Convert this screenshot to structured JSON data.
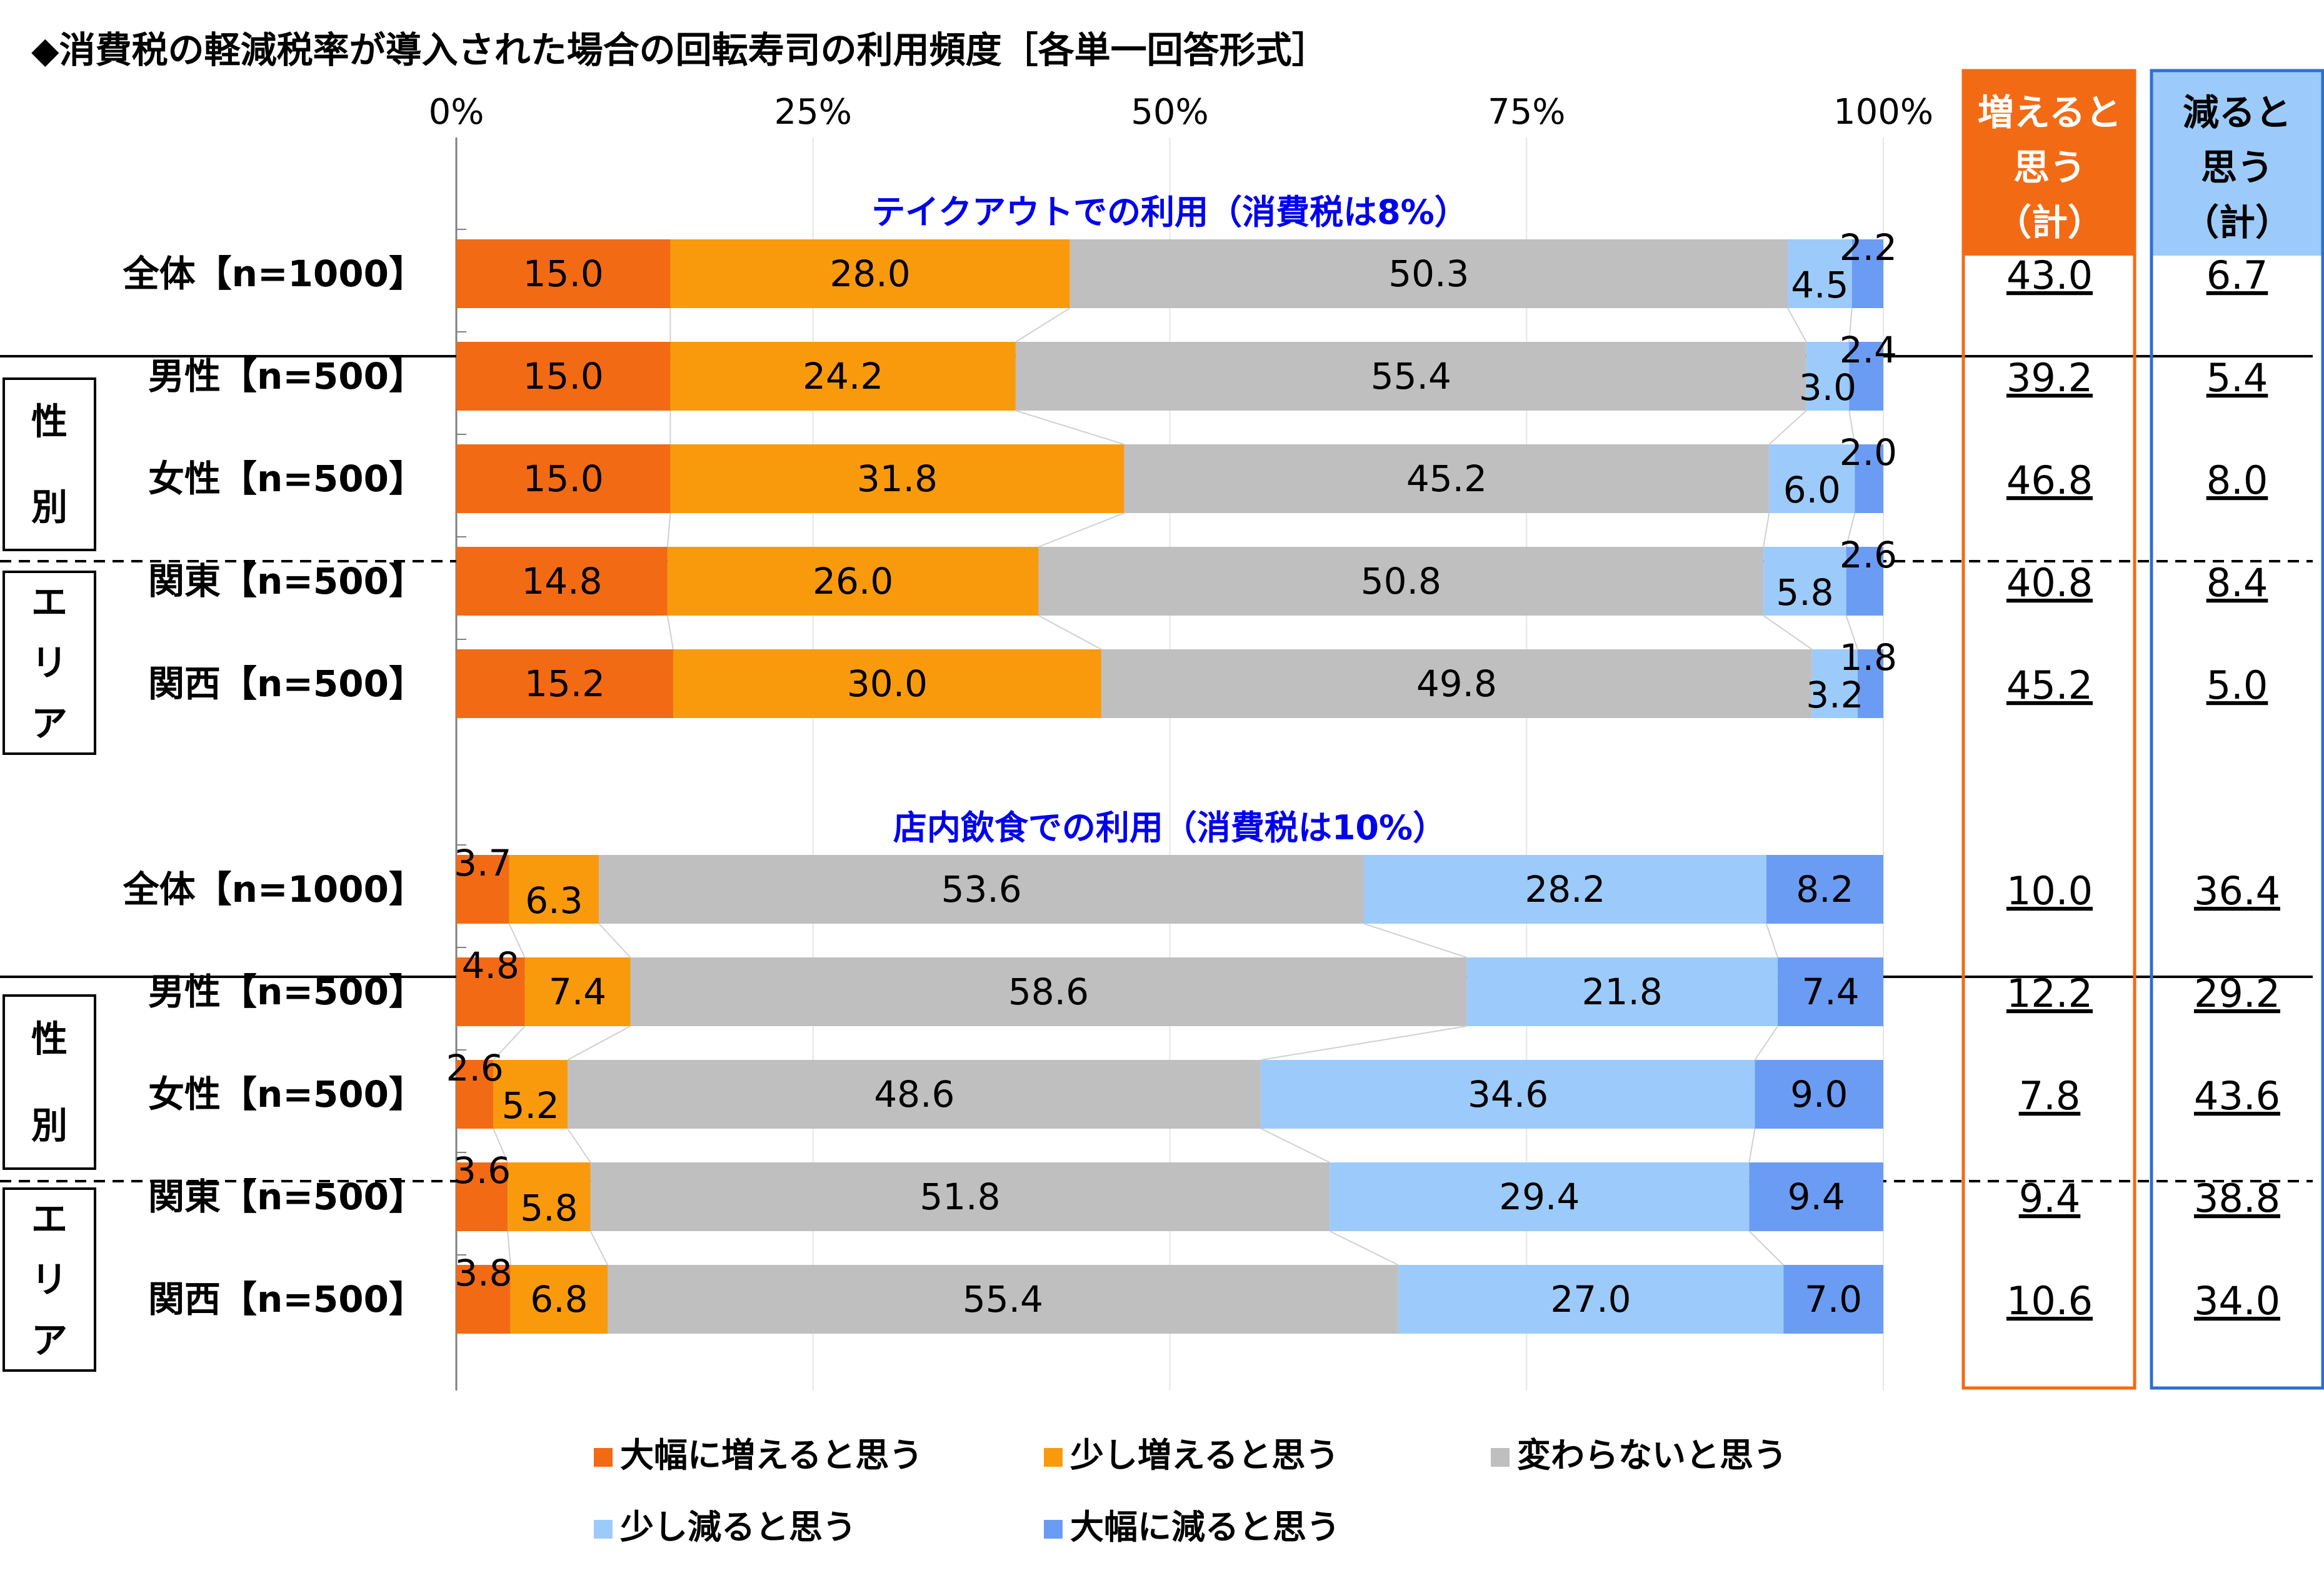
{
  "title": "◆消費税の軽減税率が導入された場合の回転寿司の利用頻度［各単一回答形式］",
  "colors": {
    "大幅に増えると思う": "#f36a14",
    "少し増えると思う": "#f99a0d",
    "変わらないと思う": "#bfbfbf",
    "少し減ると思う": "#9ccbfb",
    "大幅に減ると思う": "#6b9cf3",
    "increase_box": "#f36a14",
    "decrease_box": "#2e6fd1",
    "decrease_header": "#9ccbfb"
  },
  "headers": {
    "increase": [
      "増えると",
      "思う",
      "（計）"
    ],
    "decrease": [
      "減ると",
      "思う",
      "（計）"
    ]
  },
  "chart_data": {
    "type": "bar",
    "orientation": "horizontal",
    "stacked": true,
    "percent_stacked": true,
    "x_ticks": [
      "0%",
      "25%",
      "50%",
      "75%",
      "100%"
    ],
    "xlim": [
      0,
      100
    ],
    "legend_position": "bottom",
    "legend": [
      "大幅に増えると思う",
      "少し増えると思う",
      "変わらないと思う",
      "少し減ると思う",
      "大幅に減ると思う"
    ],
    "sections": [
      {
        "title": "テイクアウトでの利用（消費税は8%）",
        "rows": [
          {
            "label": "全体【n=1000】",
            "group": "",
            "values": [
              15.0,
              28.0,
              50.3,
              4.5,
              2.2
            ],
            "labels": [
              "15.0",
              "28.0",
              "50.3",
              "4.5",
              "2.2"
            ],
            "increase_total": "43.0",
            "decrease_total": "6.7"
          },
          {
            "label": "男性【n=500】",
            "group": "性別",
            "values": [
              15.0,
              24.2,
              55.4,
              3.0,
              2.4
            ],
            "labels": [
              "15.0",
              "24.2",
              "55.4",
              "3.0",
              "2.4"
            ],
            "increase_total": "39.2",
            "decrease_total": "5.4"
          },
          {
            "label": "女性【n=500】",
            "group": "性別",
            "values": [
              15.0,
              31.8,
              45.2,
              6.0,
              2.0
            ],
            "labels": [
              "15.0",
              "31.8",
              "45.2",
              "6.0",
              "2.0"
            ],
            "increase_total": "46.8",
            "decrease_total": "8.0"
          },
          {
            "label": "関東【n=500】",
            "group": "エリア",
            "values": [
              14.8,
              26.0,
              50.8,
              5.8,
              2.6
            ],
            "labels": [
              "14.8",
              "26.0",
              "50.8",
              "5.8",
              "2.6"
            ],
            "increase_total": "40.8",
            "decrease_total": "8.4"
          },
          {
            "label": "関西【n=500】",
            "group": "エリア",
            "values": [
              15.2,
              30.0,
              49.8,
              3.2,
              1.8
            ],
            "labels": [
              "15.2",
              "30.0",
              "49.8",
              "3.2",
              "1.8"
            ],
            "increase_total": "45.2",
            "decrease_total": "5.0"
          }
        ]
      },
      {
        "title": "店内飲食での利用（消費税は10%）",
        "rows": [
          {
            "label": "全体【n=1000】",
            "group": "",
            "values": [
              3.7,
              6.3,
              53.6,
              28.2,
              8.2
            ],
            "labels": [
              "3.7",
              "6.3",
              "53.6",
              "28.2",
              "8.2"
            ],
            "increase_total": "10.0",
            "decrease_total": "36.4"
          },
          {
            "label": "男性【n=500】",
            "group": "性別",
            "values": [
              4.8,
              7.4,
              58.6,
              21.8,
              7.4
            ],
            "labels": [
              "4.8",
              "7.4",
              "58.6",
              "21.8",
              "7.4"
            ],
            "increase_total": "12.2",
            "decrease_total": "29.2"
          },
          {
            "label": "女性【n=500】",
            "group": "性別",
            "values": [
              2.6,
              5.2,
              48.6,
              34.6,
              9.0
            ],
            "labels": [
              "2.6",
              "5.2",
              "48.6",
              "34.6",
              "9.0"
            ],
            "increase_total": "7.8",
            "decrease_total": "43.6"
          },
          {
            "label": "関東【n=500】",
            "group": "エリア",
            "values": [
              3.6,
              5.8,
              51.8,
              29.4,
              9.4
            ],
            "labels": [
              "3.6",
              "5.8",
              "51.8",
              "29.4",
              "9.4"
            ],
            "increase_total": "9.4",
            "decrease_total": "38.8"
          },
          {
            "label": "関西【n=500】",
            "group": "エリア",
            "values": [
              3.8,
              6.8,
              55.4,
              27.0,
              7.0
            ],
            "labels": [
              "3.8",
              "6.8",
              "55.4",
              "27.0",
              "7.0"
            ],
            "increase_total": "10.6",
            "decrease_total": "34.0"
          }
        ]
      }
    ],
    "group_labels": {
      "性別": [
        "性",
        "別"
      ],
      "エリア": [
        "エ",
        "リ",
        "ア"
      ]
    }
  }
}
